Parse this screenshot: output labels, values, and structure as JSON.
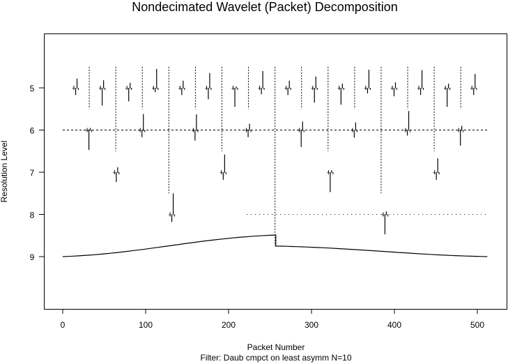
{
  "chart_data": {
    "type": "line",
    "title": "Nondecimated Wavelet (Packet) Decomposition",
    "xlabel": "Packet Number",
    "subtitle": "Filter:  Daub cmpct on least asymm N=10",
    "ylabel": "Resolution Level",
    "xlim": [
      0,
      512
    ],
    "ylim_reversed": [
      3.7,
      10.2
    ],
    "x_ticks": [
      "0",
      "100",
      "200",
      "300",
      "400",
      "500"
    ],
    "x_tick_values": [
      0,
      100,
      200,
      300,
      400,
      500
    ],
    "y_ticks": [
      "5",
      "6",
      "7",
      "8",
      "9"
    ],
    "y_tick_values": [
      5,
      6,
      7,
      8,
      9
    ],
    "grid": false,
    "packet_dividers": [
      {
        "x": 32,
        "from": 4.5,
        "to": 5.5
      },
      {
        "x": 64,
        "from": 4.5,
        "to": 6.5
      },
      {
        "x": 96,
        "from": 4.5,
        "to": 5.5
      },
      {
        "x": 128,
        "from": 4.5,
        "to": 7.5
      },
      {
        "x": 160,
        "from": 4.5,
        "to": 5.5
      },
      {
        "x": 192,
        "from": 4.5,
        "to": 6.5
      },
      {
        "x": 224,
        "from": 4.5,
        "to": 5.5
      },
      {
        "x": 256,
        "from": 4.5,
        "to": 8.75
      },
      {
        "x": 288,
        "from": 4.5,
        "to": 5.5
      },
      {
        "x": 320,
        "from": 4.5,
        "to": 6.5
      },
      {
        "x": 352,
        "from": 4.5,
        "to": 5.5
      },
      {
        "x": 384,
        "from": 4.5,
        "to": 7.5
      },
      {
        "x": 416,
        "from": 4.5,
        "to": 5.5
      },
      {
        "x": 448,
        "from": 4.5,
        "to": 6.5
      },
      {
        "x": 480,
        "from": 4.5,
        "to": 5.5
      }
    ],
    "level_baselines": [
      {
        "level": 6,
        "from": 0,
        "to": 512,
        "style": "dashed"
      },
      {
        "level": 8,
        "from": 222,
        "to": 512,
        "style": "dotted"
      }
    ],
    "coefficients": [
      {
        "level": 5,
        "x": 16,
        "up": 0.22,
        "down": 0.17
      },
      {
        "level": 5,
        "x": 48,
        "up": 0.18,
        "down": 0.42
      },
      {
        "level": 5,
        "x": 80,
        "up": 0.12,
        "down": 0.32
      },
      {
        "level": 5,
        "x": 112,
        "up": 0.45,
        "down": 0.1
      },
      {
        "level": 5,
        "x": 144,
        "up": 0.17,
        "down": 0.17
      },
      {
        "level": 5,
        "x": 176,
        "up": 0.35,
        "down": 0.27
      },
      {
        "level": 5,
        "x": 208,
        "up": 0.03,
        "down": 0.45
      },
      {
        "level": 5,
        "x": 240,
        "up": 0.4,
        "down": 0.15
      },
      {
        "level": 5,
        "x": 272,
        "up": 0.17,
        "down": 0.17
      },
      {
        "level": 5,
        "x": 304,
        "up": 0.27,
        "down": 0.35
      },
      {
        "level": 5,
        "x": 336,
        "up": 0.1,
        "down": 0.4
      },
      {
        "level": 5,
        "x": 368,
        "up": 0.43,
        "down": 0.13
      },
      {
        "level": 5,
        "x": 400,
        "up": 0.13,
        "down": 0.2
      },
      {
        "level": 5,
        "x": 432,
        "up": 0.42,
        "down": 0.17
      },
      {
        "level": 5,
        "x": 464,
        "up": 0.1,
        "down": 0.45
      },
      {
        "level": 5,
        "x": 496,
        "up": 0.33,
        "down": 0.17
      },
      {
        "level": 6,
        "x": 32,
        "up": 0.05,
        "down": 0.47
      },
      {
        "level": 6,
        "x": 96,
        "up": 0.38,
        "down": 0.17
      },
      {
        "level": 6,
        "x": 160,
        "up": 0.37,
        "down": 0.25
      },
      {
        "level": 6,
        "x": 224,
        "up": 0.15,
        "down": 0.17
      },
      {
        "level": 6,
        "x": 288,
        "up": 0.2,
        "down": 0.4
      },
      {
        "level": 6,
        "x": 352,
        "up": 0.18,
        "down": 0.18
      },
      {
        "level": 6,
        "x": 416,
        "up": 0.45,
        "down": 0.13
      },
      {
        "level": 6,
        "x": 480,
        "up": 0.1,
        "down": 0.37
      },
      {
        "level": 7,
        "x": 65,
        "up": 0.12,
        "down": 0.23
      },
      {
        "level": 7,
        "x": 194,
        "up": 0.42,
        "down": 0.18
      },
      {
        "level": 7,
        "x": 323,
        "up": 0.05,
        "down": 0.47
      },
      {
        "level": 7,
        "x": 451,
        "up": 0.33,
        "down": 0.18
      },
      {
        "level": 8,
        "x": 132,
        "up": 0.5,
        "down": 0.18
      },
      {
        "level": 8,
        "x": 389,
        "up": 0.07,
        "down": 0.47
      }
    ],
    "smooth_curve": {
      "left": {
        "x_from": 0,
        "x_to": 256,
        "y_from": 9.0,
        "y_to": 8.49
      },
      "right": {
        "x_from": 257,
        "x_to": 512,
        "y_from": 8.75,
        "y_to": 9.0
      }
    }
  }
}
